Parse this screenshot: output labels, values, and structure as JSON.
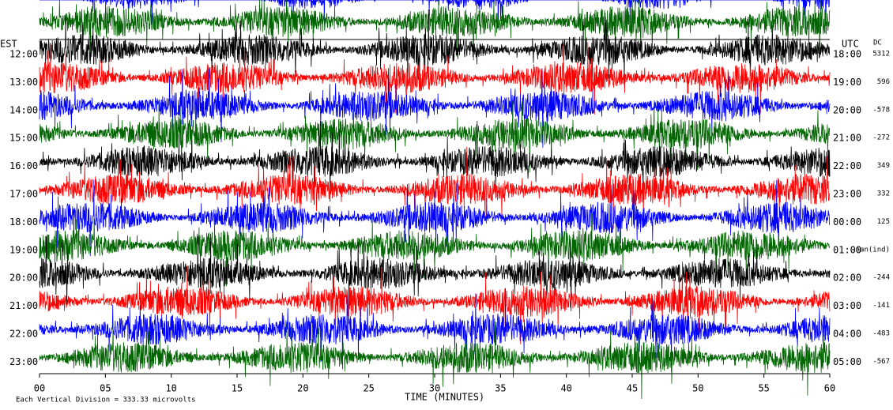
{
  "header": {
    "left_zone": "EST",
    "right_zone": "UTC",
    "dc_header": "DC"
  },
  "rows": [
    {
      "est": "12:00",
      "utc": "18:00",
      "dc": "5312"
    },
    {
      "est": "13:00",
      "utc": "19:00",
      "dc": "596"
    },
    {
      "est": "14:00",
      "utc": "20:00",
      "dc": "-578"
    },
    {
      "est": "15:00",
      "utc": "21:00",
      "dc": "-272"
    },
    {
      "est": "16:00",
      "utc": "22:00",
      "dc": "349"
    },
    {
      "est": "17:00",
      "utc": "23:00",
      "dc": "332"
    },
    {
      "est": "18:00",
      "utc": "00:00",
      "dc": "125"
    },
    {
      "est": "19:00",
      "utc": "01:00",
      "dc": "-nan(ind)"
    },
    {
      "est": "20:00",
      "utc": "02:00",
      "dc": "-244"
    },
    {
      "est": "21:00",
      "utc": "03:00",
      "dc": "-141"
    },
    {
      "est": "22:00",
      "utc": "04:00",
      "dc": "-483"
    },
    {
      "est": "23:00",
      "utc": "05:00",
      "dc": "-567"
    }
  ],
  "x_axis": {
    "ticks": [
      "00",
      "05",
      "10",
      "15",
      "20",
      "25",
      "30",
      "35",
      "40",
      "45",
      "50",
      "55",
      "60"
    ],
    "label": "TIME (MINUTES)"
  },
  "footer": "Each Vertical Division =  333.33 microvolts"
}
